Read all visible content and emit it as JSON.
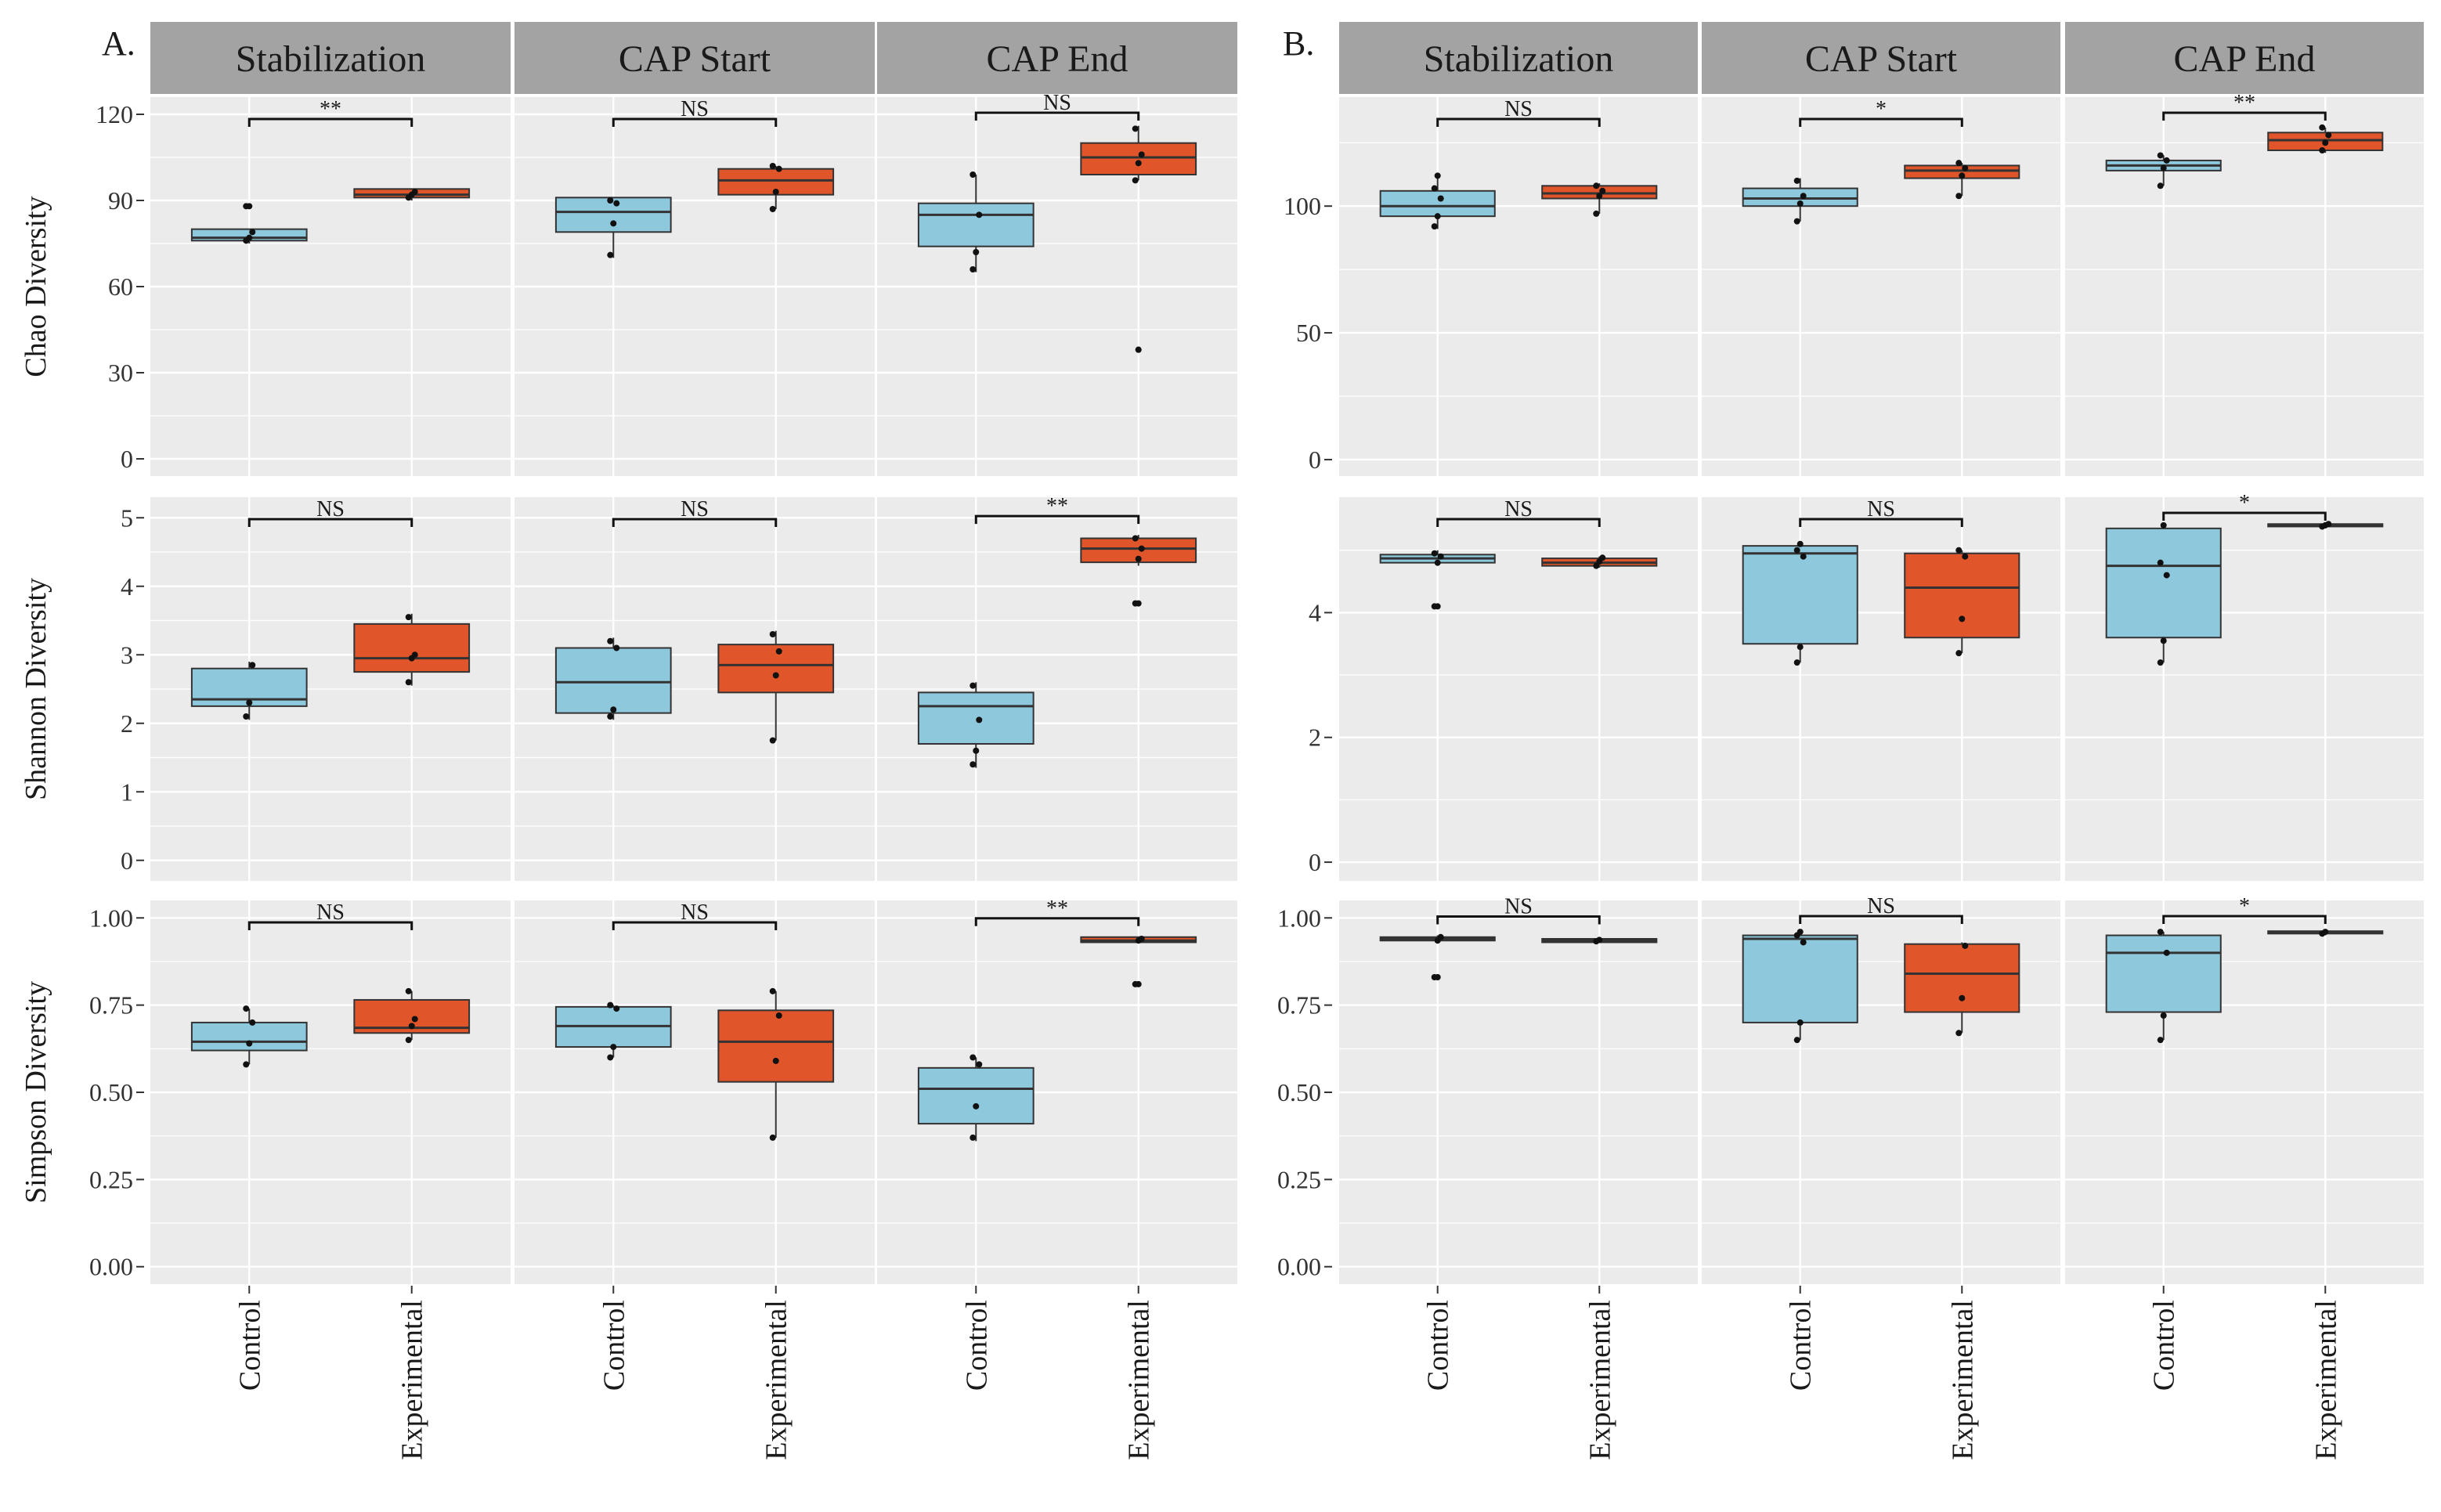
{
  "colors": {
    "control": "#8ec8dc",
    "experimental": "#e0562a",
    "panel_bg": "#ebebeb",
    "strip_bg": "#a3a3a3",
    "grid": "#ffffff"
  },
  "chart_data": [
    {
      "type": "boxplot",
      "panel": "A.",
      "columns": [
        "Stabilization",
        "CAP Start",
        "CAP End"
      ],
      "categories": [
        "Control",
        "Experimental"
      ],
      "rows": [
        {
          "ylabel": "Chao Diversity",
          "ylim": [
            -6,
            126
          ],
          "yticks": [
            0,
            30,
            60,
            90,
            120
          ],
          "facets": [
            {
              "sig": "**",
              "boxes": [
                {
                  "q1": 76,
                  "median": 77,
                  "q3": 80,
                  "lo": 75,
                  "hi": 80,
                  "outliers": [
                    88
                  ],
                  "points": [
                    76,
                    77,
                    79,
                    88
                  ]
                },
                {
                  "q1": 91,
                  "median": 92,
                  "q3": 94,
                  "lo": 90,
                  "hi": 94,
                  "outliers": [],
                  "points": [
                    91,
                    92,
                    93
                  ]
                }
              ]
            },
            {
              "sig": "NS",
              "boxes": [
                {
                  "q1": 79,
                  "median": 86,
                  "q3": 91,
                  "lo": 70,
                  "hi": 91,
                  "outliers": [],
                  "points": [
                    71,
                    82,
                    89,
                    90
                  ]
                },
                {
                  "q1": 92,
                  "median": 97,
                  "q3": 101,
                  "lo": 87,
                  "hi": 102,
                  "outliers": [],
                  "points": [
                    87,
                    93,
                    101,
                    102
                  ]
                }
              ]
            },
            {
              "sig": "NS",
              "boxes": [
                {
                  "q1": 74,
                  "median": 85,
                  "q3": 89,
                  "lo": 65,
                  "hi": 99,
                  "outliers": [],
                  "points": [
                    66,
                    72,
                    85,
                    99
                  ]
                },
                {
                  "q1": 99,
                  "median": 105,
                  "q3": 110,
                  "lo": 97,
                  "hi": 116,
                  "outliers": [
                    38
                  ],
                  "points": [
                    97,
                    103,
                    106,
                    115,
                    38
                  ]
                }
              ]
            }
          ]
        },
        {
          "ylabel": "Shannon Diversity",
          "ylim": [
            -0.3,
            5.3
          ],
          "yticks": [
            0,
            1,
            2,
            3,
            4,
            5
          ],
          "facets": [
            {
              "sig": "NS",
              "boxes": [
                {
                  "q1": 2.25,
                  "median": 2.35,
                  "q3": 2.8,
                  "lo": 2.05,
                  "hi": 2.9,
                  "outliers": [],
                  "points": [
                    2.1,
                    2.3,
                    2.85
                  ]
                },
                {
                  "q1": 2.75,
                  "median": 2.95,
                  "q3": 3.45,
                  "lo": 2.55,
                  "hi": 3.6,
                  "outliers": [],
                  "points": [
                    2.6,
                    2.95,
                    3.0,
                    3.55
                  ]
                }
              ]
            },
            {
              "sig": "NS",
              "boxes": [
                {
                  "q1": 2.15,
                  "median": 2.6,
                  "q3": 3.1,
                  "lo": 2.05,
                  "hi": 3.25,
                  "outliers": [],
                  "points": [
                    2.1,
                    2.2,
                    3.1,
                    3.2
                  ]
                },
                {
                  "q1": 2.45,
                  "median": 2.85,
                  "q3": 3.15,
                  "lo": 1.75,
                  "hi": 3.35,
                  "outliers": [],
                  "points": [
                    1.75,
                    2.7,
                    3.05,
                    3.3
                  ]
                }
              ]
            },
            {
              "sig": "**",
              "boxes": [
                {
                  "q1": 1.7,
                  "median": 2.25,
                  "q3": 2.45,
                  "lo": 1.35,
                  "hi": 2.6,
                  "outliers": [],
                  "points": [
                    1.4,
                    1.6,
                    2.05,
                    2.55
                  ]
                },
                {
                  "q1": 4.35,
                  "median": 4.55,
                  "q3": 4.7,
                  "lo": 4.3,
                  "hi": 4.75,
                  "outliers": [
                    3.75
                  ],
                  "points": [
                    3.75,
                    4.4,
                    4.55,
                    4.7
                  ]
                }
              ]
            }
          ]
        },
        {
          "ylabel": "Simpson Diversity",
          "ylim": [
            -0.05,
            1.05
          ],
          "yticks": [
            0.0,
            0.25,
            0.5,
            0.75,
            1.0
          ],
          "ytick_labels": [
            "0.00",
            "0.25",
            "0.50",
            "0.75",
            "1.00"
          ],
          "facets": [
            {
              "sig": "NS",
              "boxes": [
                {
                  "q1": 0.62,
                  "median": 0.645,
                  "q3": 0.7,
                  "lo": 0.58,
                  "hi": 0.74,
                  "outliers": [],
                  "points": [
                    0.58,
                    0.64,
                    0.7,
                    0.74
                  ]
                },
                {
                  "q1": 0.67,
                  "median": 0.685,
                  "q3": 0.765,
                  "lo": 0.65,
                  "hi": 0.79,
                  "outliers": [],
                  "points": [
                    0.65,
                    0.69,
                    0.71,
                    0.79
                  ]
                }
              ]
            },
            {
              "sig": "NS",
              "boxes": [
                {
                  "q1": 0.63,
                  "median": 0.69,
                  "q3": 0.745,
                  "lo": 0.6,
                  "hi": 0.75,
                  "outliers": [],
                  "points": [
                    0.6,
                    0.63,
                    0.74,
                    0.75
                  ]
                },
                {
                  "q1": 0.53,
                  "median": 0.645,
                  "q3": 0.735,
                  "lo": 0.37,
                  "hi": 0.79,
                  "outliers": [],
                  "points": [
                    0.37,
                    0.59,
                    0.72,
                    0.79
                  ]
                }
              ]
            },
            {
              "sig": "**",
              "boxes": [
                {
                  "q1": 0.41,
                  "median": 0.51,
                  "q3": 0.57,
                  "lo": 0.36,
                  "hi": 0.6,
                  "outliers": [],
                  "points": [
                    0.37,
                    0.46,
                    0.58,
                    0.6
                  ]
                },
                {
                  "q1": 0.93,
                  "median": 0.935,
                  "q3": 0.945,
                  "lo": 0.93,
                  "hi": 0.945,
                  "outliers": [
                    0.81
                  ],
                  "points": [
                    0.81,
                    0.935,
                    0.94
                  ]
                }
              ]
            }
          ]
        }
      ]
    },
    {
      "type": "boxplot",
      "panel": "B.",
      "columns": [
        "Stabilization",
        "CAP Start",
        "CAP End"
      ],
      "categories": [
        "Control",
        "Experimental"
      ],
      "rows": [
        {
          "ylabel": "",
          "ylim": [
            -6.5,
            143
          ],
          "yticks": [
            0,
            50,
            100
          ],
          "facets": [
            {
              "sig": "NS",
              "boxes": [
                {
                  "q1": 96,
                  "median": 100,
                  "q3": 106,
                  "lo": 91,
                  "hi": 112,
                  "outliers": [],
                  "points": [
                    92,
                    96,
                    103,
                    107,
                    112
                  ]
                },
                {
                  "q1": 103,
                  "median": 105,
                  "q3": 108,
                  "lo": 97,
                  "hi": 109,
                  "outliers": [],
                  "points": [
                    97,
                    104,
                    106,
                    108
                  ]
                }
              ]
            },
            {
              "sig": "*",
              "boxes": [
                {
                  "q1": 100,
                  "median": 103,
                  "q3": 107,
                  "lo": 94,
                  "hi": 111,
                  "outliers": [],
                  "points": [
                    94,
                    101,
                    104,
                    110
                  ]
                },
                {
                  "q1": 111,
                  "median": 114,
                  "q3": 116,
                  "lo": 104,
                  "hi": 117,
                  "outliers": [],
                  "points": [
                    104,
                    112,
                    115,
                    117
                  ]
                }
              ]
            },
            {
              "sig": "**",
              "boxes": [
                {
                  "q1": 114,
                  "median": 116,
                  "q3": 118,
                  "lo": 108,
                  "hi": 120,
                  "outliers": [],
                  "points": [
                    108,
                    115,
                    118,
                    120
                  ]
                },
                {
                  "q1": 122,
                  "median": 126,
                  "q3": 129,
                  "lo": 121,
                  "hi": 131,
                  "outliers": [],
                  "points": [
                    122,
                    125,
                    128,
                    131
                  ]
                }
              ]
            }
          ]
        },
        {
          "ylabel": "",
          "ylim": [
            -0.3,
            5.85
          ],
          "yticks": [
            0,
            2,
            4
          ],
          "facets": [
            {
              "sig": "NS",
              "boxes": [
                {
                  "q1": 4.8,
                  "median": 4.87,
                  "q3": 4.93,
                  "lo": 4.75,
                  "hi": 5.0,
                  "outliers": [
                    4.1
                  ],
                  "points": [
                    4.1,
                    4.8,
                    4.9,
                    4.95
                  ]
                },
                {
                  "q1": 4.75,
                  "median": 4.8,
                  "q3": 4.87,
                  "lo": 4.72,
                  "hi": 4.9,
                  "outliers": [],
                  "points": [
                    4.75,
                    4.82,
                    4.88
                  ]
                }
              ]
            },
            {
              "sig": "NS",
              "boxes": [
                {
                  "q1": 3.5,
                  "median": 4.95,
                  "q3": 5.07,
                  "lo": 3.2,
                  "hi": 5.12,
                  "outliers": [],
                  "points": [
                    3.2,
                    3.45,
                    4.9,
                    5.0,
                    5.1
                  ]
                },
                {
                  "q1": 3.6,
                  "median": 4.4,
                  "q3": 4.95,
                  "lo": 3.35,
                  "hi": 5.0,
                  "outliers": [],
                  "points": [
                    3.35,
                    3.9,
                    4.9,
                    5.0
                  ]
                }
              ]
            },
            {
              "sig": "*",
              "boxes": [
                {
                  "q1": 3.6,
                  "median": 4.75,
                  "q3": 5.35,
                  "lo": 3.2,
                  "hi": 5.4,
                  "outliers": [],
                  "points": [
                    3.2,
                    3.55,
                    4.6,
                    4.8,
                    5.4
                  ]
                },
                {
                  "q1": 5.38,
                  "median": 5.4,
                  "q3": 5.42,
                  "lo": 5.35,
                  "hi": 5.45,
                  "outliers": [],
                  "points": [
                    5.38,
                    5.4,
                    5.42
                  ]
                }
              ]
            }
          ]
        },
        {
          "ylabel": "",
          "ylim": [
            -0.05,
            1.05
          ],
          "yticks": [
            0.0,
            0.25,
            0.5,
            0.75,
            1.0
          ],
          "ytick_labels": [
            "0.00",
            "0.25",
            "0.50",
            "0.75",
            "1.00"
          ],
          "facets": [
            {
              "sig": "NS",
              "boxes": [
                {
                  "q1": 0.935,
                  "median": 0.94,
                  "q3": 0.945,
                  "lo": 0.93,
                  "hi": 0.95,
                  "outliers": [
                    0.83
                  ],
                  "points": [
                    0.83,
                    0.935,
                    0.945
                  ]
                },
                {
                  "q1": 0.93,
                  "median": 0.935,
                  "q3": 0.94,
                  "lo": 0.93,
                  "hi": 0.94,
                  "outliers": [],
                  "points": [
                    0.933,
                    0.937
                  ]
                }
              ]
            },
            {
              "sig": "NS",
              "boxes": [
                {
                  "q1": 0.7,
                  "median": 0.94,
                  "q3": 0.95,
                  "lo": 0.65,
                  "hi": 0.96,
                  "outliers": [],
                  "points": [
                    0.65,
                    0.7,
                    0.93,
                    0.95,
                    0.96
                  ]
                },
                {
                  "q1": 0.73,
                  "median": 0.84,
                  "q3": 0.925,
                  "lo": 0.67,
                  "hi": 0.93,
                  "outliers": [],
                  "points": [
                    0.67,
                    0.77,
                    0.92
                  ]
                }
              ]
            },
            {
              "sig": "*",
              "boxes": [
                {
                  "q1": 0.73,
                  "median": 0.9,
                  "q3": 0.95,
                  "lo": 0.65,
                  "hi": 0.96,
                  "outliers": [],
                  "points": [
                    0.65,
                    0.72,
                    0.9,
                    0.96
                  ]
                },
                {
                  "q1": 0.955,
                  "median": 0.958,
                  "q3": 0.962,
                  "lo": 0.95,
                  "hi": 0.965,
                  "outliers": [],
                  "points": [
                    0.955,
                    0.96
                  ]
                }
              ]
            }
          ]
        }
      ]
    }
  ]
}
